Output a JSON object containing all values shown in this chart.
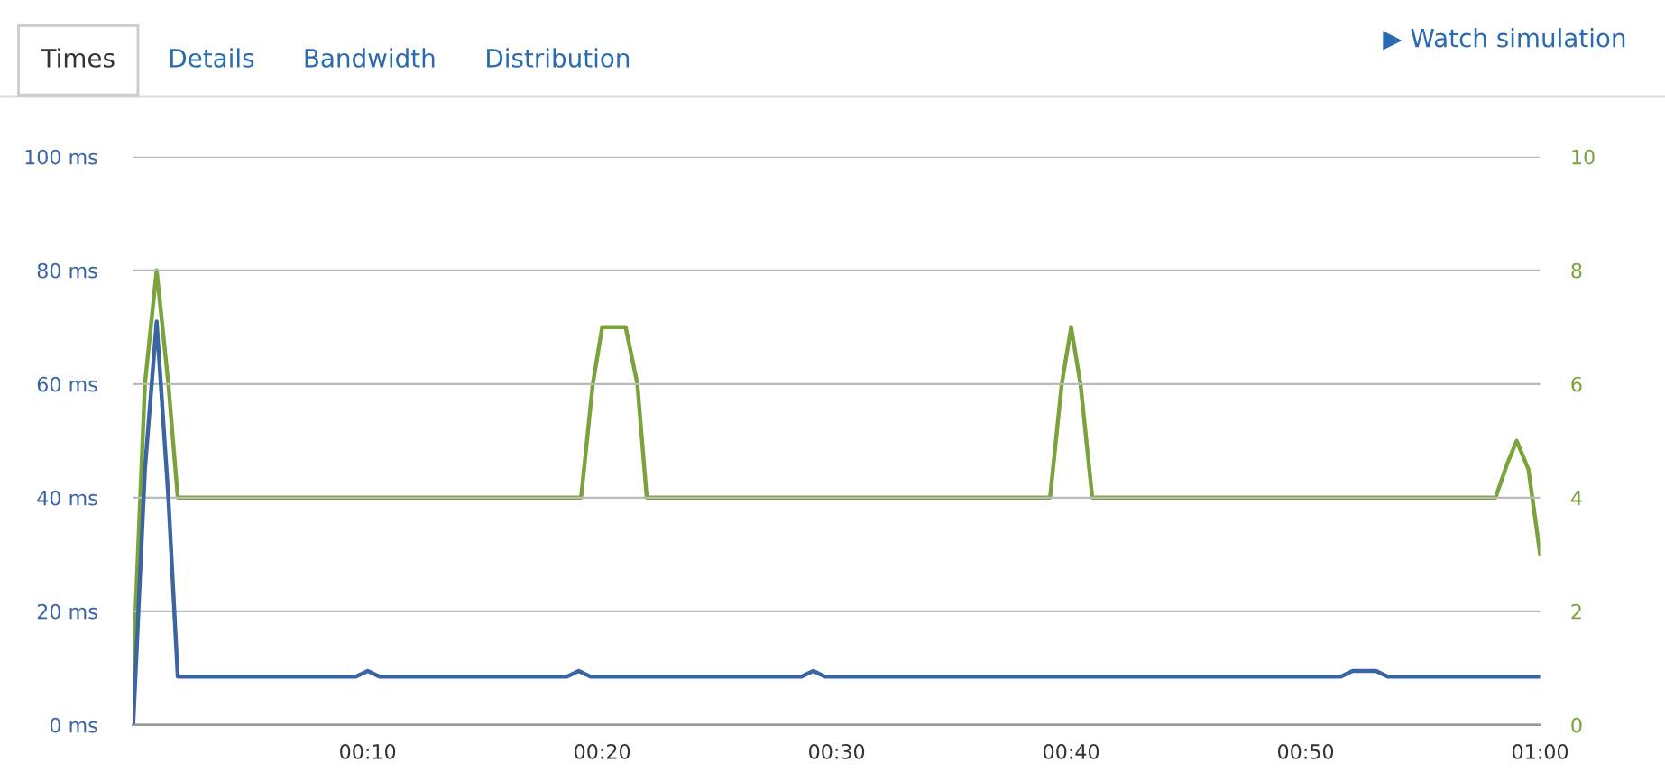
{
  "chart_data": {
    "type": "line",
    "annotations": [
      "Times",
      "Details",
      "Bandwidth",
      "Distribution",
      "▶ Watch simulation"
    ],
    "series": [
      {
        "color": "#3b64a2",
        "x": [
          0,
          0.5,
          1,
          1.5,
          1.9,
          2.5,
          9.5,
          10,
          10.5,
          18.5,
          19,
          19.5,
          28.5,
          29,
          29.5,
          51.5,
          52,
          53,
          53.5,
          60
        ],
        "values": [
          0,
          45,
          71,
          40,
          8.5,
          8.5,
          8.5,
          9.5,
          8.5,
          8.5,
          9.5,
          8.5,
          8.5,
          9.5,
          8.5,
          8.5,
          9.5,
          9.5,
          8.5,
          8.5
        ]
      },
      {
        "color": "#7aa33c",
        "axis": "y2",
        "x": [
          0,
          0.5,
          1,
          1.5,
          1.9,
          19.1,
          19.6,
          20,
          21,
          21.5,
          21.9,
          39.1,
          39.6,
          40,
          40.4,
          40.9,
          58.1,
          58.6,
          59,
          59.5,
          60
        ],
        "values": [
          1,
          6,
          8,
          6,
          4,
          4,
          6,
          7,
          7,
          6,
          4,
          4,
          6,
          7,
          6,
          4,
          4,
          4.6,
          5,
          4.5,
          3
        ]
      }
    ],
    "xlim": [
      0,
      60
    ],
    "xticks": [
      {
        "value": 10,
        "label": "00:10"
      },
      {
        "value": 20,
        "label": "00:20"
      },
      {
        "value": 30,
        "label": "00:30"
      },
      {
        "value": 40,
        "label": "00:40"
      },
      {
        "value": 50,
        "label": "00:50"
      },
      {
        "value": 60,
        "label": "01:00"
      }
    ],
    "ylim": [
      0,
      100
    ],
    "yticks": [
      {
        "value": 0,
        "label": "0 ms"
      },
      {
        "value": 20,
        "label": "20 ms"
      },
      {
        "value": 40,
        "label": "40 ms"
      },
      {
        "value": 60,
        "label": "60 ms"
      },
      {
        "value": 80,
        "label": "80 ms"
      },
      {
        "value": 100,
        "label": "100 ms"
      }
    ],
    "y2lim": [
      0,
      10
    ],
    "y2ticks": [
      0,
      2,
      4,
      6,
      8,
      10
    ],
    "grid": "y"
  }
}
